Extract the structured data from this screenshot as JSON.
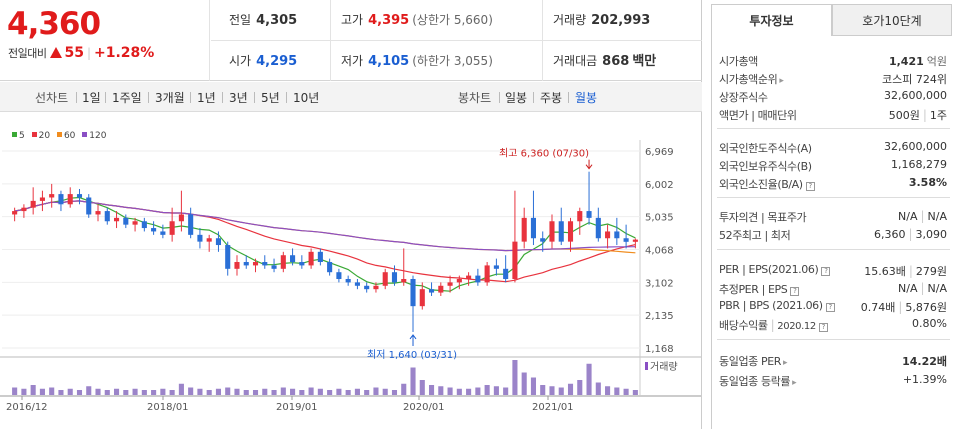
{
  "quote": {
    "price": "4,360",
    "change_label": "전일대비",
    "change_value": "55",
    "change_pct": "+1.28%",
    "cells": [
      {
        "label": "전일",
        "value": "4,305",
        "sub": "",
        "color": "#333333"
      },
      {
        "label": "고가",
        "value": "4,395",
        "sub": "(상한가 5,660)",
        "color": "#e01b1b"
      },
      {
        "label": "거래량",
        "value": "202,993",
        "sub": "",
        "color": "#333333"
      },
      {
        "label": "시가",
        "value": "4,295",
        "sub": "",
        "color": "#1a5ed1"
      },
      {
        "label": "저가",
        "value": "4,105",
        "sub": "(하한가 3,055)",
        "color": "#1a5ed1"
      },
      {
        "label": "거래대금",
        "value": "868",
        "sub": "백만",
        "color": "#333333"
      }
    ]
  },
  "period_bar": {
    "range_label": "선차트",
    "ranges": [
      "1일",
      "1주일",
      "3개월",
      "1년",
      "3년",
      "5년",
      "10년"
    ],
    "candle_label": "봉차트",
    "candles": [
      "일봉",
      "주봉",
      "월봉"
    ],
    "active_candle": "월봉"
  },
  "legend": [
    {
      "label": "5",
      "color": "#3aa935"
    },
    {
      "label": "20",
      "color": "#e8333e"
    },
    {
      "label": "60",
      "color": "#f08c1e"
    },
    {
      "label": "120",
      "color": "#8a4fc4"
    }
  ],
  "chart_data": {
    "type": "candlestick",
    "price_ticks": [
      "6,969",
      "6,002",
      "5,035",
      "4,068",
      "3,102",
      "2,135",
      "1,168"
    ],
    "date_ticks": [
      "2016/12",
      "2018/01",
      "2019/01",
      "2020/01",
      "2021/01"
    ],
    "volume_label": "거래량",
    "high_annotation": "최고 6,360 (07/30)",
    "low_annotation": "최저 1,640 (03/31)",
    "candles": [
      [
        5100,
        5300,
        4900,
        5200
      ],
      [
        5200,
        5400,
        5000,
        5300
      ],
      [
        5300,
        5900,
        5100,
        5500
      ],
      [
        5500,
        5800,
        5200,
        5600
      ],
      [
        5600,
        6000,
        5300,
        5700
      ],
      [
        5700,
        5800,
        5200,
        5400
      ],
      [
        5400,
        5900,
        5300,
        5700
      ],
      [
        5700,
        5850,
        5400,
        5600
      ],
      [
        5600,
        5700,
        5000,
        5100
      ],
      [
        5100,
        5400,
        4900,
        5200
      ],
      [
        5200,
        5300,
        4800,
        4900
      ],
      [
        4900,
        5200,
        4700,
        5000
      ],
      [
        5000,
        5100,
        4700,
        4800
      ],
      [
        4800,
        5000,
        4600,
        4900
      ],
      [
        4900,
        5000,
        4600,
        4700
      ],
      [
        4700,
        4900,
        4500,
        4600
      ],
      [
        4600,
        4800,
        4400,
        4500
      ],
      [
        4500,
        5300,
        4300,
        4900
      ],
      [
        4900,
        5800,
        4600,
        5100
      ],
      [
        5100,
        5300,
        4400,
        4500
      ],
      [
        4500,
        4700,
        4100,
        4300
      ],
      [
        4300,
        4500,
        4000,
        4400
      ],
      [
        4400,
        4600,
        4000,
        4200
      ],
      [
        4200,
        4300,
        3300,
        3500
      ],
      [
        3500,
        3900,
        3300,
        3700
      ],
      [
        3700,
        3900,
        3500,
        3600
      ],
      [
        3600,
        3800,
        3400,
        3700
      ],
      [
        3700,
        3900,
        3500,
        3600
      ],
      [
        3600,
        3800,
        3400,
        3500
      ],
      [
        3500,
        4000,
        3400,
        3900
      ],
      [
        3900,
        4100,
        3600,
        3700
      ],
      [
        3700,
        3900,
        3500,
        3600
      ],
      [
        3600,
        4100,
        3500,
        4000
      ],
      [
        4000,
        4100,
        3600,
        3700
      ],
      [
        3700,
        3800,
        3300,
        3400
      ],
      [
        3400,
        3500,
        3100,
        3200
      ],
      [
        3200,
        3300,
        3000,
        3100
      ],
      [
        3100,
        3200,
        2900,
        3000
      ],
      [
        3000,
        3100,
        2800,
        2900
      ],
      [
        2900,
        3100,
        2800,
        3000
      ],
      [
        3000,
        3500,
        2900,
        3400
      ],
      [
        3400,
        3600,
        3000,
        3100
      ],
      [
        3100,
        4100,
        3000,
        3200
      ],
      [
        3200,
        3300,
        1640,
        2400
      ],
      [
        2400,
        3100,
        2300,
        2900
      ],
      [
        2900,
        3100,
        2700,
        2800
      ],
      [
        2800,
        3100,
        2700,
        3000
      ],
      [
        3000,
        3300,
        2800,
        3100
      ],
      [
        3100,
        3300,
        2900,
        3200
      ],
      [
        3200,
        3400,
        3000,
        3300
      ],
      [
        3300,
        3500,
        3000,
        3100
      ],
      [
        3100,
        3700,
        3000,
        3600
      ],
      [
        3600,
        3800,
        3300,
        3500
      ],
      [
        3500,
        3900,
        3100,
        3200
      ],
      [
        3200,
        5800,
        3100,
        4300
      ],
      [
        4300,
        5300,
        4100,
        5000
      ],
      [
        5000,
        5800,
        4200,
        4400
      ],
      [
        4400,
        4600,
        4000,
        4300
      ],
      [
        4300,
        5100,
        4100,
        4900
      ],
      [
        4900,
        5300,
        4200,
        4300
      ],
      [
        4300,
        5000,
        4000,
        4900
      ],
      [
        4900,
        5300,
        4500,
        5200
      ],
      [
        5200,
        6360,
        4800,
        5000
      ],
      [
        5000,
        5300,
        4300,
        4400
      ],
      [
        4400,
        4800,
        4100,
        4600
      ],
      [
        4600,
        5000,
        4200,
        4400
      ],
      [
        4400,
        4800,
        4100,
        4295
      ],
      [
        4295,
        4395,
        4105,
        4360
      ]
    ],
    "volume": [
      6,
      5,
      8,
      5,
      6,
      4,
      5,
      4,
      7,
      5,
      4,
      5,
      4,
      5,
      4,
      4,
      5,
      4,
      9,
      6,
      5,
      4,
      5,
      6,
      5,
      4,
      4,
      5,
      4,
      6,
      5,
      4,
      6,
      5,
      4,
      5,
      4,
      5,
      4,
      6,
      5,
      4,
      9,
      22,
      12,
      8,
      7,
      6,
      5,
      5,
      6,
      8,
      7,
      6,
      28,
      18,
      14,
      8,
      7,
      6,
      9,
      12,
      25,
      10,
      7,
      6,
      5,
      4
    ]
  },
  "invest_tabs": {
    "active": "투자정보",
    "inactive": "호가10단계"
  },
  "invest": {
    "market_cap_label": "시가총액",
    "market_cap_value": "1,421",
    "market_cap_unit": "억원",
    "rank_label": "시가총액순위",
    "rank_value": "코스피 724위",
    "shares_label": "상장주식수",
    "shares_value": "32,600,000",
    "par_label": "액면가 | 매매단위",
    "par_value": "500원",
    "par_unit": "1주",
    "foreign_limit_label": "외국인한도주식수(A)",
    "foreign_limit_value": "32,600,000",
    "foreign_hold_label": "외국인보유주식수(B)",
    "foreign_hold_value": "1,168,279",
    "foreign_ratio_label": "외국인소진율(B/A)",
    "foreign_ratio_value": "3.58%",
    "opinion_label": "투자의견 | 목표주가",
    "opinion_value": "N/A",
    "target_value": "N/A",
    "week52_label": "52주최고 | 최저",
    "week52_high": "6,360",
    "week52_low": "3,090",
    "per_label": "PER | EPS(2021.06)",
    "per_value": "15.63배",
    "eps_value": "279원",
    "est_per_label": "추정PER | EPS",
    "est_per_value": "N/A",
    "est_eps_value": "N/A",
    "pbr_label": "PBR | BPS (2021.06)",
    "pbr_value": "0.74배",
    "bps_value": "5,876원",
    "div_label": "배당수익률",
    "div_date": "2020.12",
    "div_value": "0.80%",
    "sector_per_label": "동일업종 PER",
    "sector_per_value": "14.22배",
    "sector_rate_label": "동일업종 등락률",
    "sector_rate_value": "+1.39%"
  }
}
